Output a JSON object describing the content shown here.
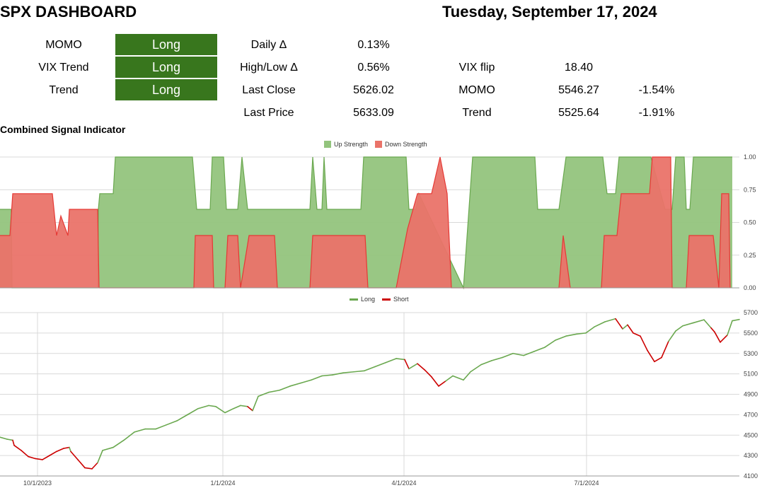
{
  "header": {
    "title": "SPX DASHBOARD",
    "date": "Tuesday, September 17, 2024"
  },
  "signals": [
    {
      "label": "MOMO",
      "value": "Long"
    },
    {
      "label": "VIX Trend",
      "value": "Long"
    },
    {
      "label": "Trend",
      "value": "Long"
    }
  ],
  "stats": {
    "daily_delta": {
      "label": "Daily Δ",
      "value": "0.13%"
    },
    "high_low_delta": {
      "label": "High/Low Δ",
      "value": "0.56%"
    },
    "last_close": {
      "label": "Last Close",
      "value": "5626.02"
    },
    "last_price": {
      "label": "Last Price",
      "value": "5633.09"
    },
    "vix_flip": {
      "label": "VIX flip",
      "value": "18.40"
    },
    "momo": {
      "label": "MOMO",
      "value": "5546.27",
      "pct": "-1.54%"
    },
    "trend": {
      "label": "Trend",
      "value": "5525.64",
      "pct": "-1.91%"
    }
  },
  "colors": {
    "long_green": "#38761d",
    "up_fill": "#93c47d",
    "up_line": "#6aa84f",
    "down_fill": "#ea7369",
    "down_line": "#e53935",
    "short_red": "#cc0000"
  },
  "chart_data": [
    {
      "type": "area",
      "title": "Combined Signal Indicator",
      "series": [
        {
          "name": "Up Strength"
        },
        {
          "name": "Down Strength"
        }
      ],
      "ylim": [
        0,
        1
      ],
      "yticks": [
        "1.00",
        "0.75",
        "0.50",
        "0.25",
        "0.00"
      ],
      "legend": "top-center",
      "grid": true,
      "up_segments": [
        [
          0.0,
          0.6
        ],
        [
          16,
          0.6
        ],
        [
          17,
          0.0
        ],
        [
          138,
          0.0
        ],
        [
          139,
          0.6
        ],
        [
          141,
          0.72
        ],
        [
          160,
          0.72
        ],
        [
          163,
          1.0
        ],
        [
          272,
          1.0
        ],
        [
          278,
          0.6
        ],
        [
          292,
          0.6
        ],
        [
          297,
          0.6
        ],
        [
          300,
          1.0
        ],
        [
          316,
          1.0
        ],
        [
          320,
          0.6
        ],
        [
          336,
          0.6
        ],
        [
          342,
          1.0
        ],
        [
          350,
          0.6
        ],
        [
          438,
          0.6
        ],
        [
          442,
          1.0
        ],
        [
          448,
          0.6
        ],
        [
          455,
          0.6
        ],
        [
          458,
          1.0
        ],
        [
          462,
          0.6
        ],
        [
          510,
          0.6
        ],
        [
          514,
          1.0
        ],
        [
          574,
          1.0
        ],
        [
          578,
          0.6
        ],
        [
          588,
          0.6
        ],
        [
          592,
          0.72
        ],
        [
          655,
          0.0
        ],
        [
          668,
          1.0
        ],
        [
          756,
          1.0
        ],
        [
          760,
          0.6
        ],
        [
          790,
          0.6
        ],
        [
          800,
          1.0
        ],
        [
          852,
          1.0
        ],
        [
          858,
          0.72
        ],
        [
          870,
          0.72
        ],
        [
          875,
          1.0
        ],
        [
          920,
          1.0
        ],
        [
          940,
          0.6
        ],
        [
          950,
          0.6
        ],
        [
          955,
          1.0
        ],
        [
          967,
          1.0
        ],
        [
          970,
          0.6
        ],
        [
          975,
          0.6
        ],
        [
          980,
          1.0
        ],
        [
          1032,
          1.0
        ],
        [
          1035,
          1.0
        ]
      ],
      "down_segments": [
        [
          0.0,
          0.4
        ],
        [
          14,
          0.4
        ],
        [
          18,
          0.72
        ],
        [
          74,
          0.72
        ],
        [
          80,
          0.4
        ],
        [
          86,
          0.55
        ],
        [
          96,
          0.4
        ],
        [
          98,
          0.6
        ],
        [
          138,
          0.6
        ],
        [
          140,
          0.0
        ],
        [
          274,
          0.0
        ],
        [
          276,
          0.4
        ],
        [
          300,
          0.4
        ],
        [
          302,
          0.0
        ],
        [
          318,
          0.0
        ],
        [
          322,
          0.4
        ],
        [
          336,
          0.4
        ],
        [
          340,
          0.0
        ],
        [
          352,
          0.4
        ],
        [
          388,
          0.4
        ],
        [
          392,
          0.0
        ],
        [
          438,
          0.0
        ],
        [
          442,
          0.4
        ],
        [
          516,
          0.4
        ],
        [
          520,
          0.0
        ],
        [
          560,
          0.0
        ],
        [
          576,
          0.45
        ],
        [
          590,
          0.72
        ],
        [
          600,
          0.72
        ],
        [
          610,
          0.72
        ],
        [
          622,
          1.0
        ],
        [
          632,
          0.72
        ],
        [
          638,
          0.0
        ],
        [
          790,
          0.0
        ],
        [
          796,
          0.4
        ],
        [
          806,
          0.0
        ],
        [
          850,
          0.0
        ],
        [
          854,
          0.4
        ],
        [
          872,
          0.4
        ],
        [
          878,
          0.72
        ],
        [
          888,
          0.72
        ],
        [
          892,
          0.72
        ],
        [
          918,
          0.72
        ],
        [
          922,
          1.0
        ],
        [
          948,
          1.0
        ],
        [
          950,
          0.0
        ],
        [
          970,
          0.0
        ],
        [
          974,
          0.4
        ],
        [
          1008,
          0.4
        ],
        [
          1016,
          0.0
        ],
        [
          1020,
          0.72
        ],
        [
          1030,
          0.72
        ],
        [
          1032,
          0.0
        ]
      ]
    },
    {
      "type": "line",
      "series": [
        {
          "name": "Long"
        },
        {
          "name": "Short"
        }
      ],
      "ylim": [
        4100,
        5700
      ],
      "yticks": [
        5700,
        5500,
        5300,
        5100,
        4900,
        4700,
        4500,
        4300,
        4100
      ],
      "xticks": [
        "10/1/2023",
        "1/1/2024",
        "4/1/2024",
        "7/1/2024"
      ],
      "legend": "top-center",
      "grid": true,
      "points": [
        [
          0,
          4480,
          "L"
        ],
        [
          10,
          4460,
          "L"
        ],
        [
          18,
          4450,
          "L"
        ],
        [
          20,
          4400,
          "S"
        ],
        [
          30,
          4350,
          "S"
        ],
        [
          40,
          4290,
          "S"
        ],
        [
          50,
          4270,
          "S"
        ],
        [
          60,
          4260,
          "S"
        ],
        [
          70,
          4300,
          "S"
        ],
        [
          80,
          4340,
          "S"
        ],
        [
          90,
          4370,
          "S"
        ],
        [
          98,
          4380,
          "S"
        ],
        [
          100,
          4340,
          "L"
        ],
        [
          110,
          4260,
          "S"
        ],
        [
          120,
          4180,
          "S"
        ],
        [
          130,
          4170,
          "S"
        ],
        [
          138,
          4230,
          "S"
        ],
        [
          145,
          4350,
          "L"
        ],
        [
          160,
          4380,
          "L"
        ],
        [
          175,
          4450,
          "L"
        ],
        [
          190,
          4530,
          "L"
        ],
        [
          205,
          4560,
          "L"
        ],
        [
          220,
          4560,
          "L"
        ],
        [
          235,
          4600,
          "L"
        ],
        [
          250,
          4640,
          "L"
        ],
        [
          265,
          4700,
          "L"
        ],
        [
          280,
          4760,
          "L"
        ],
        [
          295,
          4790,
          "L"
        ],
        [
          305,
          4780,
          "L"
        ],
        [
          318,
          4720,
          "L"
        ],
        [
          330,
          4760,
          "L"
        ],
        [
          340,
          4790,
          "L"
        ],
        [
          350,
          4780,
          "L"
        ],
        [
          357,
          4740,
          "S"
        ],
        [
          365,
          4880,
          "L"
        ],
        [
          380,
          4920,
          "L"
        ],
        [
          395,
          4940,
          "L"
        ],
        [
          410,
          4980,
          "L"
        ],
        [
          425,
          5010,
          "L"
        ],
        [
          440,
          5040,
          "L"
        ],
        [
          455,
          5080,
          "L"
        ],
        [
          470,
          5090,
          "L"
        ],
        [
          485,
          5110,
          "L"
        ],
        [
          500,
          5120,
          "L"
        ],
        [
          515,
          5130,
          "L"
        ],
        [
          530,
          5170,
          "L"
        ],
        [
          545,
          5210,
          "L"
        ],
        [
          560,
          5250,
          "L"
        ],
        [
          572,
          5240,
          "L"
        ],
        [
          578,
          5150,
          "S"
        ],
        [
          590,
          5200,
          "L"
        ],
        [
          600,
          5140,
          "S"
        ],
        [
          610,
          5070,
          "S"
        ],
        [
          620,
          4980,
          "S"
        ],
        [
          630,
          5030,
          "S"
        ],
        [
          640,
          5080,
          "L"
        ],
        [
          655,
          5040,
          "L"
        ],
        [
          665,
          5120,
          "L"
        ],
        [
          680,
          5190,
          "L"
        ],
        [
          695,
          5230,
          "L"
        ],
        [
          710,
          5260,
          "L"
        ],
        [
          725,
          5300,
          "L"
        ],
        [
          740,
          5280,
          "L"
        ],
        [
          755,
          5320,
          "L"
        ],
        [
          770,
          5360,
          "L"
        ],
        [
          785,
          5430,
          "L"
        ],
        [
          800,
          5470,
          "L"
        ],
        [
          815,
          5490,
          "L"
        ],
        [
          828,
          5500,
          "L"
        ],
        [
          840,
          5560,
          "L"
        ],
        [
          855,
          5610,
          "L"
        ],
        [
          870,
          5640,
          "L"
        ],
        [
          880,
          5540,
          "S"
        ],
        [
          887,
          5580,
          "L"
        ],
        [
          895,
          5500,
          "S"
        ],
        [
          905,
          5470,
          "S"
        ],
        [
          915,
          5330,
          "S"
        ],
        [
          925,
          5220,
          "S"
        ],
        [
          935,
          5260,
          "S"
        ],
        [
          945,
          5420,
          "S"
        ],
        [
          955,
          5520,
          "L"
        ],
        [
          965,
          5570,
          "L"
        ],
        [
          980,
          5600,
          "L"
        ],
        [
          995,
          5630,
          "L"
        ],
        [
          1005,
          5550,
          "L"
        ],
        [
          1010,
          5510,
          "S"
        ],
        [
          1018,
          5410,
          "S"
        ],
        [
          1028,
          5480,
          "S"
        ],
        [
          1035,
          5620,
          "L"
        ],
        [
          1045,
          5633,
          "L"
        ]
      ]
    }
  ]
}
